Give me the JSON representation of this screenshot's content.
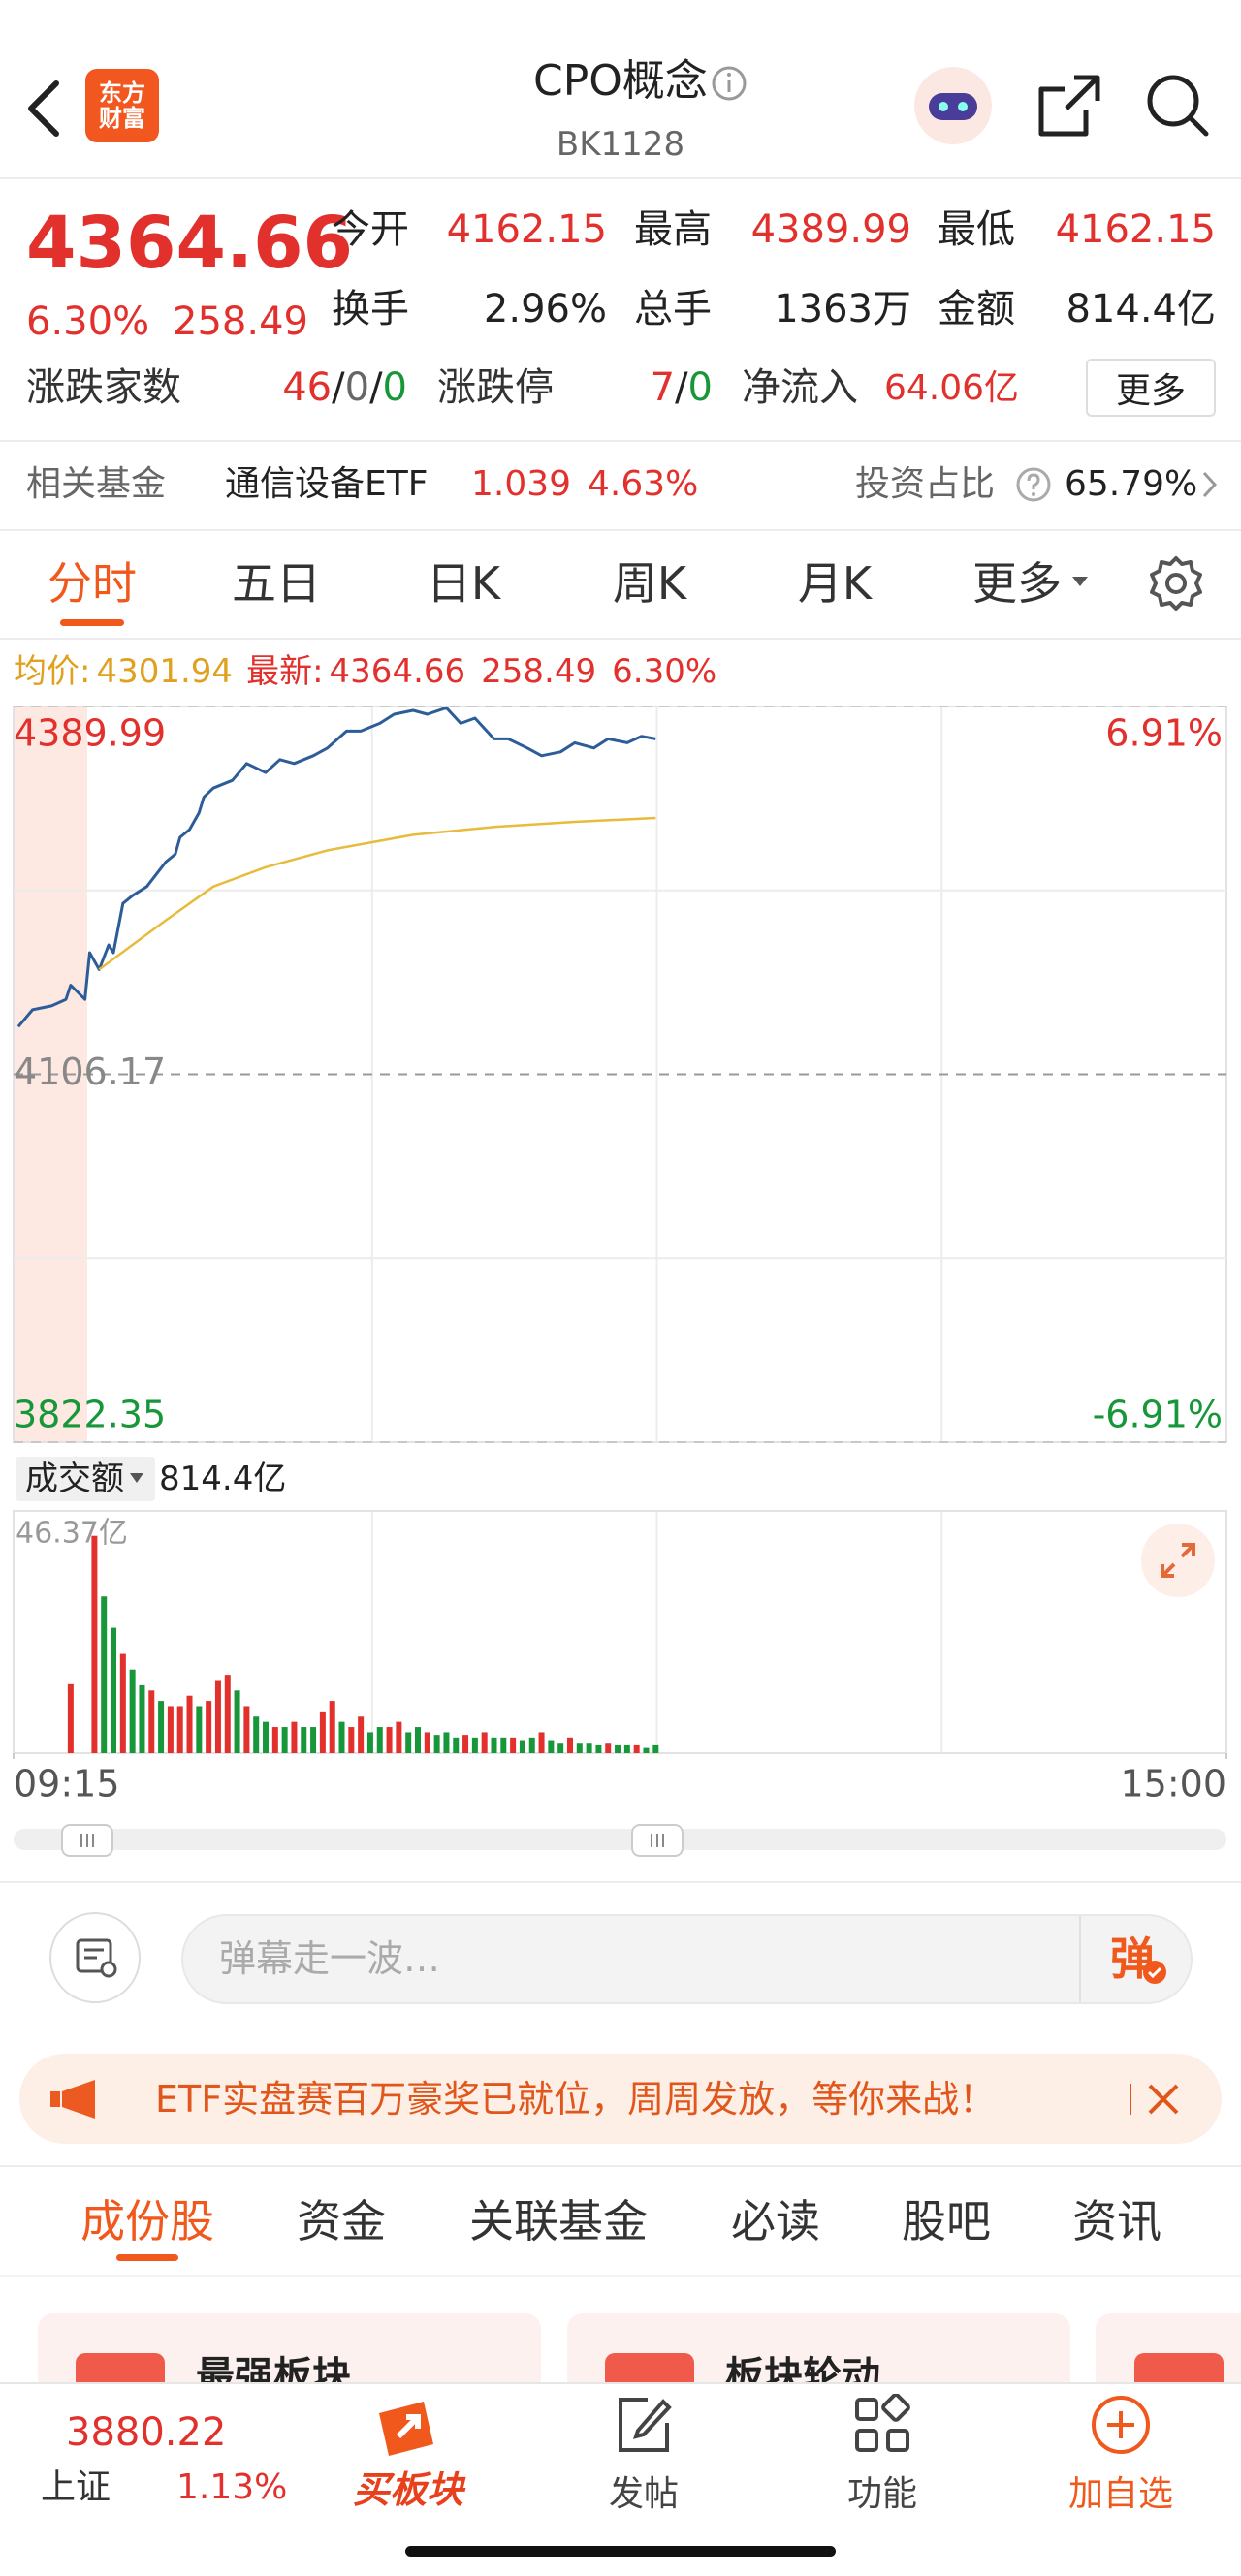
{
  "header": {
    "logo": [
      "东方",
      "财富"
    ],
    "title": "CPO概念",
    "code": "BK1128"
  },
  "quote": {
    "price": "4364.66",
    "change_pct": "6.30%",
    "change": "258.49",
    "stats": [
      {
        "label": "今开",
        "value": "4162.15"
      },
      {
        "label": "最高",
        "value": "4389.99"
      },
      {
        "label": "最低",
        "value": "4162.15"
      },
      {
        "label": "换手",
        "value": "2.96%"
      },
      {
        "label": "总手",
        "value": "1363万"
      },
      {
        "label": "金额",
        "value": "814.4亿"
      }
    ],
    "breadth": {
      "label": "涨跌家数",
      "up": "46",
      "flat": "0",
      "down": "0",
      "sep": "/"
    },
    "limit": {
      "label": "涨跌停",
      "up": "7",
      "down": "0",
      "sep": "/"
    },
    "net_inflow": {
      "label": "净流入",
      "value": "64.06亿"
    },
    "more": "更多"
  },
  "fund": {
    "label": "相关基金",
    "name": "通信设备ETF",
    "price": "1.039",
    "change": "4.63%",
    "ratio_label": "投资占比",
    "ratio": "65.79%"
  },
  "tabs": [
    "分时",
    "五日",
    "日K",
    "周K",
    "月K",
    "更多"
  ],
  "info": {
    "avg_label": "均价:",
    "avg": "4301.94",
    "last_label": "最新:",
    "last": "4364.66",
    "change": "258.49",
    "pct": "6.30%"
  },
  "chart_data": [
    {
      "type": "line",
      "grid": true,
      "xlim": [
        0,
        255
      ],
      "ylim": [
        3822.35,
        4389.99
      ],
      "yticks": [
        4389.99,
        4106.17,
        3822.35
      ],
      "y2lim": [
        -6.91,
        6.91
      ],
      "y2ticks": [
        {
          "value": 6.91,
          "label": "6.91%"
        },
        {
          "value": -6.91,
          "label": "-6.91%"
        }
      ],
      "series": [
        {
          "color": "#2d5d99",
          "x": [
            1,
            4,
            8,
            11,
            12,
            15,
            16,
            18,
            20,
            21,
            23,
            25,
            28,
            32,
            34,
            35,
            37,
            39,
            40,
            42,
            46,
            49,
            53,
            56,
            59,
            63,
            66,
            70,
            73,
            77,
            80,
            84,
            87,
            91,
            94,
            97,
            101,
            104,
            108,
            111,
            115,
            118,
            122,
            125,
            129,
            132,
            135
          ],
          "values": [
            4143,
            4156,
            4159,
            4164,
            4175,
            4164,
            4200,
            4187,
            4206,
            4200,
            4238,
            4244,
            4251,
            4270,
            4276,
            4289,
            4295,
            4308,
            4320,
            4327,
            4333,
            4346,
            4339,
            4349,
            4346,
            4352,
            4358,
            4371,
            4371,
            4377,
            4384,
            4387,
            4384,
            4389,
            4377,
            4381,
            4365,
            4365,
            4358,
            4352,
            4355,
            4362,
            4358,
            4365,
            4362,
            4367,
            4365
          ]
        },
        {
          "color": "#e8bb3c",
          "x": [
            18,
            25,
            32,
            42,
            53,
            66,
            84,
            101,
            118,
            135
          ],
          "values": [
            4187,
            4206,
            4225,
            4251,
            4266,
            4279,
            4291,
            4297,
            4301,
            4304
          ]
        }
      ]
    },
    {
      "type": "bar",
      "xlim": [
        0,
        255
      ],
      "xticks": [
        {
          "value": 0,
          "label": "09:15"
        },
        {
          "value": 255,
          "label": "15:00"
        }
      ],
      "ylim": [
        0,
        46.37
      ],
      "yticks": [
        {
          "value": 46.37,
          "label": "46.37亿"
        }
      ],
      "x": [
        12,
        17,
        19,
        21,
        23,
        25,
        27,
        29,
        31,
        33,
        35,
        37,
        39,
        41,
        43,
        45,
        47,
        49,
        51,
        53,
        55,
        57,
        59,
        61,
        63,
        65,
        67,
        69,
        71,
        73,
        75,
        77,
        79,
        81,
        83,
        85,
        87,
        89,
        91,
        93,
        95,
        97,
        99,
        101,
        103,
        105,
        107,
        109,
        111,
        113,
        115,
        117,
        119,
        121,
        123,
        125,
        127,
        129,
        131,
        133,
        135
      ],
      "values": [
        13.2,
        41.6,
        30,
        24,
        19,
        16,
        13,
        12,
        10,
        9,
        9,
        11,
        9,
        10,
        14,
        15,
        12,
        9,
        7,
        6,
        5,
        5,
        6,
        5,
        5,
        8,
        10,
        6,
        5,
        7,
        4,
        5,
        5,
        6,
        4,
        5,
        4,
        3.5,
        4,
        3,
        3.5,
        3,
        4,
        3,
        3,
        3,
        2.5,
        3,
        4,
        2.5,
        2,
        3,
        2,
        2,
        1.5,
        2,
        1.5,
        1.5,
        1.5,
        1,
        1.5
      ],
      "colors": [
        "#e2302d",
        "#e2302d",
        "#18973a",
        "#18973a",
        "#e2302d",
        "#18973a",
        "#18973a",
        "#e2302d",
        "#18973a",
        "#e2302d",
        "#e2302d",
        "#e2302d",
        "#18973a",
        "#e2302d",
        "#e2302d",
        "#e2302d",
        "#18973a",
        "#e2302d",
        "#18973a",
        "#18973a",
        "#e2302d",
        "#18973a",
        "#e2302d",
        "#18973a",
        "#18973a",
        "#e2302d",
        "#e2302d",
        "#18973a",
        "#e2302d",
        "#e2302d",
        "#18973a",
        "#18973a",
        "#e2302d",
        "#e2302d",
        "#18973a",
        "#18973a",
        "#e2302d",
        "#18973a",
        "#18973a",
        "#18973a",
        "#e2302d",
        "#18973a",
        "#e2302d",
        "#18973a",
        "#18973a",
        "#e2302d",
        "#18973a",
        "#18973a",
        "#e2302d",
        "#18973a",
        "#18973a",
        "#e2302d",
        "#18973a",
        "#18973a",
        "#18973a",
        "#e2302d",
        "#18973a",
        "#18973a",
        "#e2302d",
        "#18973a",
        "#18973a"
      ]
    }
  ],
  "volume_label": "成交额",
  "volume_total": "814.4亿",
  "comment_placeholder": "弹幕走一波…",
  "danmu": "弹",
  "banner": "ETF实盘赛百万豪奖已就位，周周发放，等你来战！",
  "section_tabs": [
    "成份股",
    "资金",
    "关联基金",
    "必读",
    "股吧",
    "资讯"
  ],
  "cards": [
    "最强板块",
    "板块轮动"
  ],
  "nav": {
    "index": {
      "value": "3880.22",
      "name": "上证",
      "pct": "1.13%"
    },
    "items": [
      "买板块",
      "发帖",
      "功能",
      "加自选"
    ]
  }
}
